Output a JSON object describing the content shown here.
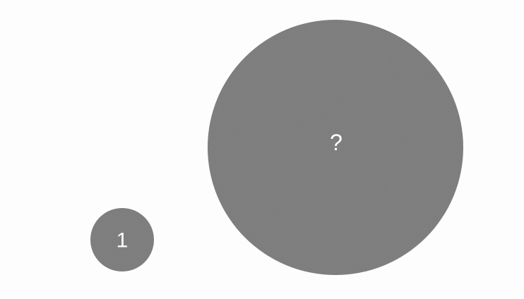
{
  "circles": {
    "small": {
      "label": "1"
    },
    "large": {
      "label": "?"
    }
  },
  "colors": {
    "background": "#fdfdfd",
    "circle_fill": "#7a7a7a",
    "label_color": "#ffffff"
  }
}
